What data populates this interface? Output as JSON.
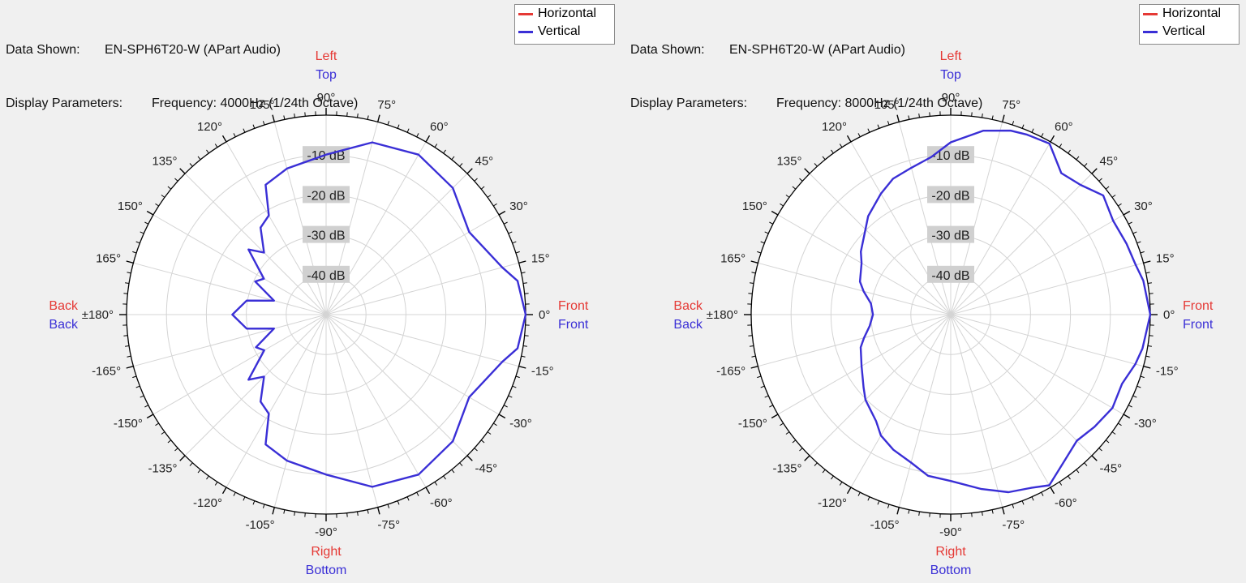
{
  "colors": {
    "horizontal": "#e53935",
    "vertical": "#3a2fd6",
    "grid": "#d4d4d4",
    "ring": "#000000",
    "label_bg": "#d0d0d0"
  },
  "chart_data": [
    {
      "type": "polar-line",
      "info": {
        "data_shown_label": "Data Shown:",
        "data_shown_value": "EN-SPH6T20-W (APart Audio)",
        "params_label": "Display Parameters:",
        "params_value": "Frequency: 4000Hz (1/24th Octave)"
      },
      "legend": [
        {
          "name": "Horizontal",
          "color": "#e53935"
        },
        {
          "name": "Vertical",
          "color": "#3a2fd6"
        }
      ],
      "rings_db": [
        {
          "value": -10,
          "label": "-10 dB"
        },
        {
          "value": -20,
          "label": "-20 dB"
        },
        {
          "value": -30,
          "label": "-30 dB"
        },
        {
          "value": -40,
          "label": "-40 dB"
        }
      ],
      "r_range_db": [
        -50,
        0
      ],
      "angle_labels": [
        "0°",
        "15°",
        "30°",
        "45°",
        "60°",
        "75°",
        "90°",
        "105°",
        "120°",
        "135°",
        "150°",
        "165°",
        "±180°",
        "-165°",
        "-150°",
        "-135°",
        "-120°",
        "-105°",
        "-90°",
        "-75°",
        "-60°",
        "-45°",
        "-30°",
        "-15°"
      ],
      "direction_labels": {
        "front": {
          "h": "Front",
          "v": "Front"
        },
        "back": {
          "h": "Back",
          "v": "Back"
        },
        "top": {
          "h": "Left",
          "v": "Top"
        },
        "bottom": {
          "h": "Right",
          "v": "Bottom"
        }
      },
      "series": [
        {
          "name": "Vertical",
          "angles_deg": [
            0,
            10,
            15,
            30,
            45,
            60,
            75,
            90,
            105,
            115,
            120,
            127,
            135,
            140,
            150,
            155,
            165,
            170,
            180,
            190,
            195,
            205,
            210,
            220,
            225,
            233,
            240,
            245,
            255,
            270,
            285,
            300,
            315,
            330,
            345,
            350
          ],
          "values_db": [
            0,
            -1.3,
            -4.3,
            -8.6,
            -5.1,
            -3.7,
            -5.3,
            -9.9,
            -12.1,
            -14.1,
            -21.3,
            -22.7,
            -28,
            -24.6,
            -32,
            -30.4,
            -36.5,
            -29.8,
            -26.5,
            -29.8,
            -36.5,
            -30.6,
            -32.1,
            -24.6,
            -28,
            -22.7,
            -21.3,
            -14.1,
            -12.1,
            -9.9,
            -5.3,
            -3.7,
            -5.1,
            -8.6,
            -4.3,
            -1.3
          ]
        }
      ]
    },
    {
      "type": "polar-line",
      "info": {
        "data_shown_label": "Data Shown:",
        "data_shown_value": "EN-SPH6T20-W (APart Audio)",
        "params_label": "Display Parameters:",
        "params_value": "Frequency: 8000Hz (1/24th Octave)"
      },
      "legend": [
        {
          "name": "Horizontal",
          "color": "#e53935"
        },
        {
          "name": "Vertical",
          "color": "#3a2fd6"
        }
      ],
      "rings_db": [
        {
          "value": -10,
          "label": "-10 dB"
        },
        {
          "value": -20,
          "label": "-20 dB"
        },
        {
          "value": -30,
          "label": "-30 dB"
        },
        {
          "value": -40,
          "label": "-40 dB"
        }
      ],
      "r_range_db": [
        -50,
        0
      ],
      "angle_labels": [
        "0°",
        "15°",
        "30°",
        "45°",
        "60°",
        "75°",
        "90°",
        "105°",
        "120°",
        "135°",
        "150°",
        "165°",
        "±180°",
        "-165°",
        "-150°",
        "-135°",
        "-120°",
        "-105°",
        "-90°",
        "-75°",
        "-60°",
        "-45°",
        "-30°",
        "-15°"
      ],
      "direction_labels": {
        "front": {
          "h": "Front",
          "v": "Front"
        },
        "back": {
          "h": "Back",
          "v": "Back"
        },
        "top": {
          "h": "Left",
          "v": "Top"
        },
        "bottom": {
          "h": "Right",
          "v": "Bottom"
        }
      },
      "series": [
        {
          "name": "Vertical",
          "angles_deg": [
            0,
            10,
            15,
            22,
            30,
            38,
            45,
            52,
            60,
            67,
            72,
            80,
            90,
            97,
            105,
            113,
            120,
            130,
            135,
            145,
            150,
            160,
            165,
            172,
            180,
            188,
            195,
            200,
            210,
            220,
            225,
            235,
            240,
            247,
            255,
            262,
            270,
            280,
            288,
            295,
            300,
            308,
            315,
            322,
            330,
            338,
            345,
            350
          ],
          "values_db": [
            0,
            -1,
            -2,
            -2.5,
            -3,
            -1.5,
            -4,
            -5,
            -0.5,
            -1,
            -1.5,
            -3.2,
            -6.8,
            -10.2,
            -11.9,
            -13,
            -15,
            -17.8,
            -19.8,
            -22.5,
            -24.2,
            -25.8,
            -27.4,
            -29.8,
            -30.5,
            -29.5,
            -27.5,
            -26,
            -24.2,
            -21.5,
            -19.8,
            -17.4,
            -15,
            -13.2,
            -11.6,
            -9.2,
            -8.3,
            -5.6,
            -3.2,
            -2.1,
            -0.6,
            -3.6,
            -5.3,
            -4.3,
            -3.2,
            -3.7,
            -2.1,
            -1.2
          ]
        }
      ]
    }
  ]
}
